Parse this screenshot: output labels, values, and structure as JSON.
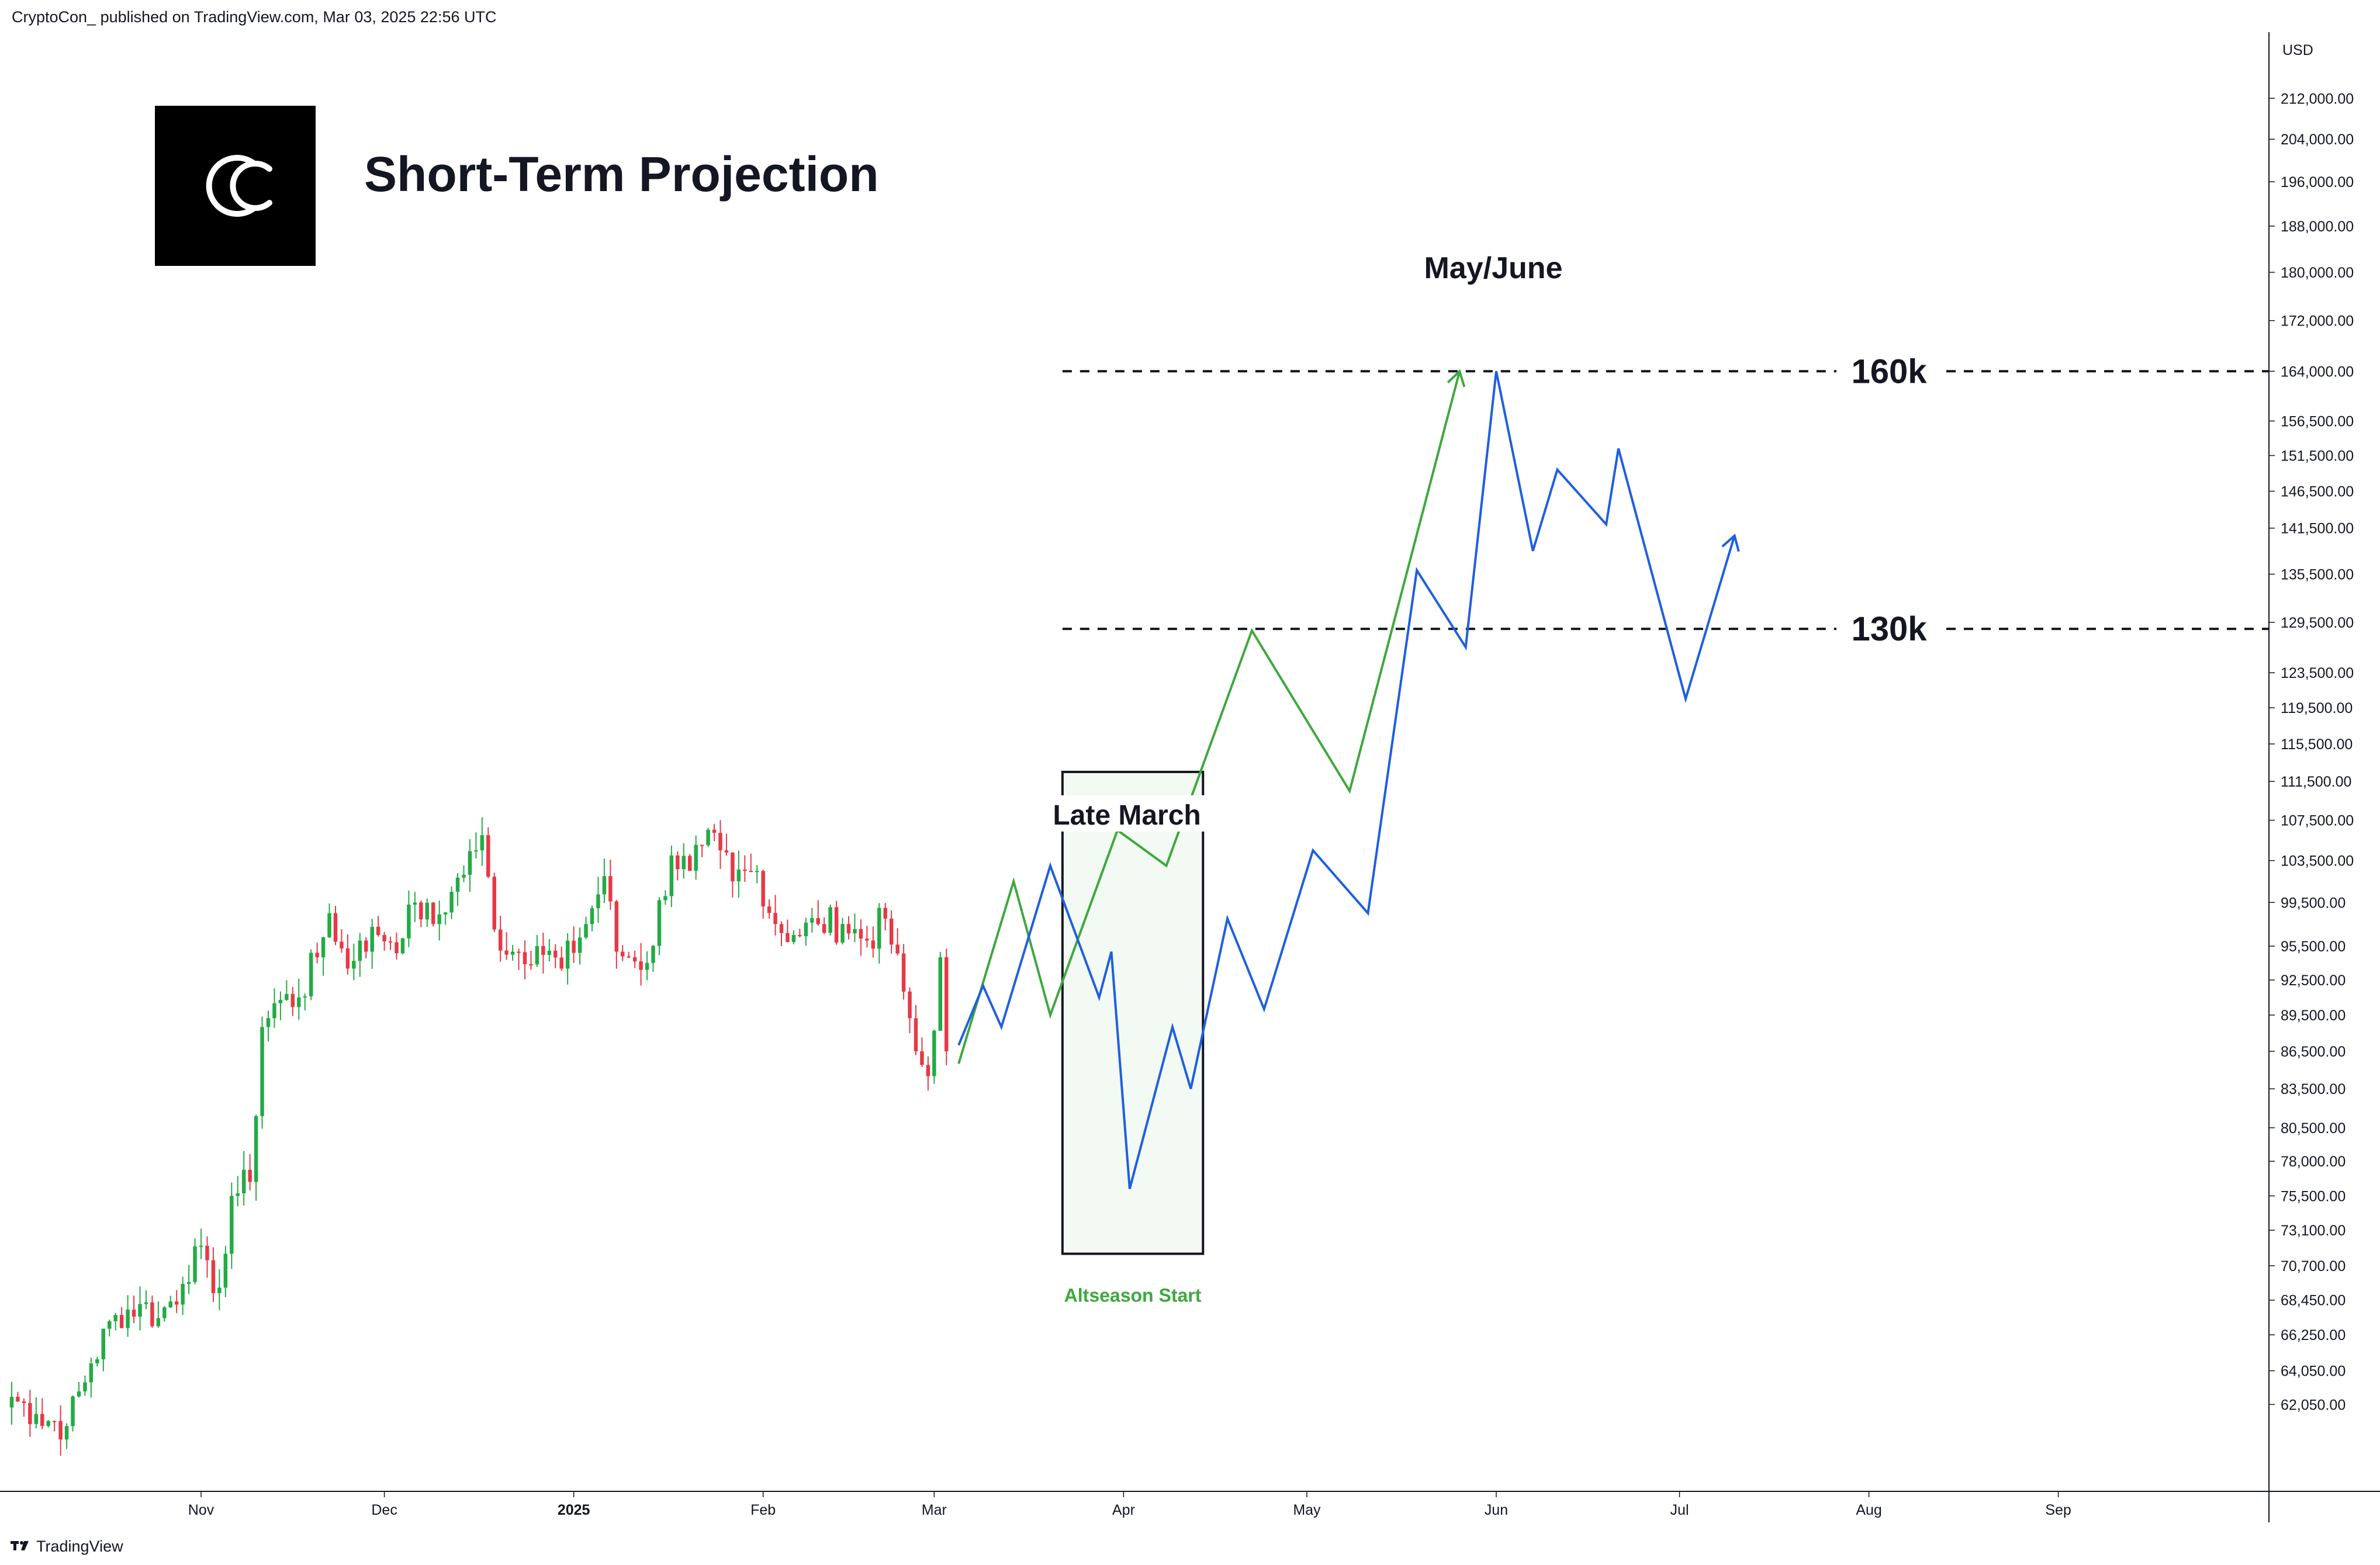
{
  "header": {
    "published_line": "CryptoCon_  published on TradingView.com, Mar 03, 2025 22:56 UTC"
  },
  "title": "Short-Term Projection",
  "logo": {
    "icon": "cryptocon-cc-logo-icon"
  },
  "footer": {
    "brand_label": "TradingView",
    "icon": "tradingview-logo-icon"
  },
  "colors": {
    "up": "#22ab45",
    "down": "#e63946",
    "green_path": "#3ea83e",
    "blue_path": "#1f5fe0",
    "box_fill": "#f3faf3",
    "altseason_text": "#3ea83e"
  },
  "chart_data": {
    "type": "candlestick",
    "currency_label": "USD",
    "y_scale": "log",
    "ylim": [
      59000,
      225000
    ],
    "y_ticks": [
      "212,000.00",
      "204,000.00",
      "196,000.00",
      "188,000.00",
      "180,000.00",
      "172,000.00",
      "164,000.00",
      "156,500.00",
      "151,500.00",
      "146,500.00",
      "141,500.00",
      "135,500.00",
      "129,500.00",
      "123,500.00",
      "119,500.00",
      "115,500.00",
      "111,500.00",
      "107,500.00",
      "103,500.00",
      "99,500.00",
      "95,500.00",
      "92,500.00",
      "89,500.00",
      "86,500.00",
      "83,500.00",
      "80,500.00",
      "78,000.00",
      "75,500.00",
      "73,100.00",
      "70,700.00",
      "68,450.00",
      "66,250.00",
      "64,050.00",
      "62,050.00"
    ],
    "x_range": [
      "2024-10-01",
      "2025-09-24"
    ],
    "x_ticks": [
      {
        "date": "2024-11-01",
        "label": "Nov",
        "bold": false
      },
      {
        "date": "2024-12-01",
        "label": "Dec",
        "bold": false
      },
      {
        "date": "2025-01-01",
        "label": "2025",
        "bold": true
      },
      {
        "date": "2025-02-01",
        "label": "Feb",
        "bold": false
      },
      {
        "date": "2025-03-01",
        "label": "Mar",
        "bold": false
      },
      {
        "date": "2025-04-01",
        "label": "Apr",
        "bold": false
      },
      {
        "date": "2025-05-01",
        "label": "May",
        "bold": false
      },
      {
        "date": "2025-06-01",
        "label": "Jun",
        "bold": false
      },
      {
        "date": "2025-07-01",
        "label": "Jul",
        "bold": false
      },
      {
        "date": "2025-08-01",
        "label": "Aug",
        "bold": false
      },
      {
        "date": "2025-09-01",
        "label": "Sep",
        "bold": false
      }
    ],
    "candle_anchors": [
      [
        "2024-10-01",
        62500
      ],
      [
        "2024-10-05",
        61500
      ],
      [
        "2024-10-10",
        60800
      ],
      [
        "2024-10-14",
        64500
      ],
      [
        "2024-10-18",
        67500
      ],
      [
        "2024-10-22",
        68200
      ],
      [
        "2024-10-25",
        67300
      ],
      [
        "2024-10-29",
        69500
      ],
      [
        "2024-10-31",
        72000
      ],
      [
        "2024-11-03",
        68900
      ],
      [
        "2024-11-05",
        71500
      ],
      [
        "2024-11-06",
        75500
      ],
      [
        "2024-11-09",
        76500
      ],
      [
        "2024-11-11",
        88500
      ],
      [
        "2024-11-13",
        90500
      ],
      [
        "2024-11-17",
        91000
      ],
      [
        "2024-11-20",
        94500
      ],
      [
        "2024-11-22",
        98500
      ],
      [
        "2024-11-25",
        93500
      ],
      [
        "2024-11-27",
        96000
      ],
      [
        "2024-11-30",
        96500
      ],
      [
        "2024-12-04",
        96200
      ],
      [
        "2024-12-06",
        99500
      ],
      [
        "2024-12-09",
        97500
      ],
      [
        "2024-12-12",
        100500
      ],
      [
        "2024-12-16",
        104500
      ],
      [
        "2024-12-17",
        106000
      ],
      [
        "2024-12-19",
        97000
      ],
      [
        "2024-12-22",
        95000
      ],
      [
        "2024-12-26",
        95500
      ],
      [
        "2024-12-30",
        93500
      ],
      [
        "2025-01-03",
        97500
      ],
      [
        "2025-01-06",
        102000
      ],
      [
        "2025-01-08",
        95000
      ],
      [
        "2025-01-10",
        94500
      ],
      [
        "2025-01-13",
        94000
      ],
      [
        "2025-01-17",
        104000
      ],
      [
        "2025-01-20",
        102500
      ],
      [
        "2025-01-22",
        105000
      ],
      [
        "2025-01-25",
        104500
      ],
      [
        "2025-01-27",
        101500
      ],
      [
        "2025-01-31",
        102500
      ],
      [
        "2025-02-03",
        97500
      ],
      [
        "2025-02-06",
        96500
      ],
      [
        "2025-02-10",
        97500
      ],
      [
        "2025-02-14",
        97500
      ],
      [
        "2025-02-18",
        96000
      ],
      [
        "2025-02-21",
        98000
      ],
      [
        "2025-02-24",
        91500
      ],
      [
        "2025-02-26",
        86500
      ],
      [
        "2025-02-28",
        84500
      ],
      [
        "2025-03-02",
        94500
      ],
      [
        "2025-03-03",
        86500
      ]
    ],
    "projection_paths": [
      {
        "color": "green",
        "arrow_end": true,
        "points": [
          [
            "2025-03-05",
            85500
          ],
          [
            "2025-03-14",
            101500
          ],
          [
            "2025-03-20",
            89500
          ],
          [
            "2025-03-31",
            106500
          ],
          [
            "2025-04-08",
            103000
          ],
          [
            "2025-04-22",
            128500
          ],
          [
            "2025-05-08",
            110500
          ],
          [
            "2025-05-26",
            164000
          ]
        ]
      },
      {
        "color": "blue",
        "arrow_end": true,
        "points": [
          [
            "2025-03-05",
            87000
          ],
          [
            "2025-03-09",
            92000
          ],
          [
            "2025-03-12",
            88500
          ],
          [
            "2025-03-20",
            103000
          ],
          [
            "2025-03-28",
            91000
          ],
          [
            "2025-03-30",
            95000
          ],
          [
            "2025-04-02",
            76000
          ],
          [
            "2025-04-09",
            88500
          ],
          [
            "2025-04-12",
            83500
          ],
          [
            "2025-04-18",
            98000
          ],
          [
            "2025-04-24",
            90000
          ],
          [
            "2025-05-02",
            104500
          ],
          [
            "2025-05-11",
            98500
          ],
          [
            "2025-05-19",
            136000
          ],
          [
            "2025-05-27",
            126500
          ],
          [
            "2025-06-01",
            164000
          ],
          [
            "2025-06-07",
            138500
          ],
          [
            "2025-06-11",
            149500
          ],
          [
            "2025-06-19",
            142000
          ],
          [
            "2025-06-21",
            152500
          ],
          [
            "2025-07-02",
            120500
          ],
          [
            "2025-07-10",
            140500
          ]
        ]
      }
    ],
    "levels": [
      {
        "value": 164000,
        "label": "160k",
        "start": "2025-03-22"
      },
      {
        "value": 128700,
        "label": "130k",
        "start": "2025-03-22"
      }
    ],
    "highlight_box": {
      "start": "2025-03-22",
      "end": "2025-04-14",
      "y_top": 112500,
      "y_bottom": 71500,
      "label": "Late March",
      "caption": "Altseason Start"
    },
    "annotations": [
      {
        "text": "May/June",
        "date": "2025-06-01",
        "value": 179000
      }
    ]
  }
}
